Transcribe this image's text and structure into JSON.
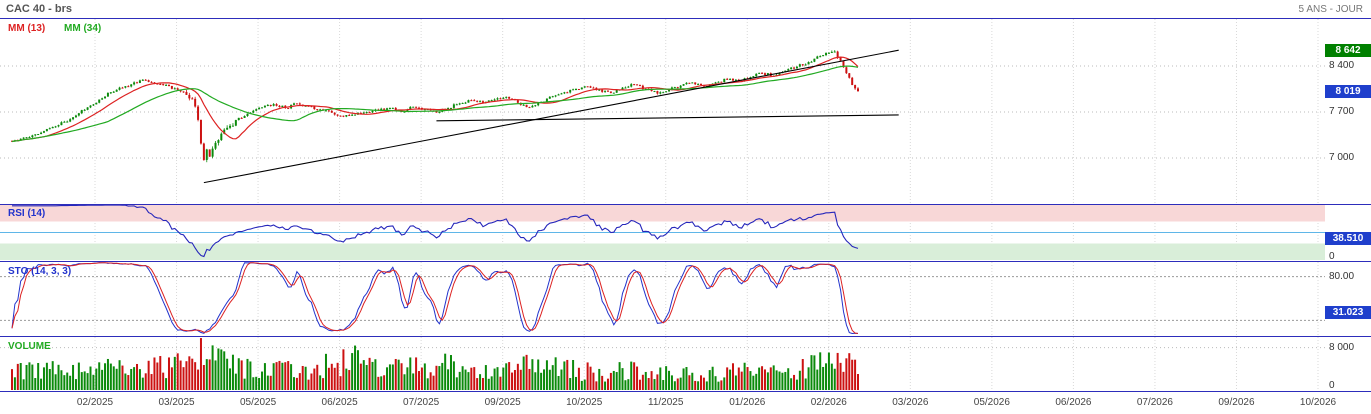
{
  "header": {
    "title": "CAC 40 - brs",
    "timeframe": "5 ANS - JOUR"
  },
  "chart_data": {
    "type": "candlestick",
    "title": "CAC 40 - brs",
    "timeframe": "5 ANS - JOUR",
    "x_labels": [
      "02/2025",
      "03/2025",
      "05/2025",
      "06/2025",
      "07/2025",
      "09/2025",
      "10/2025",
      "11/2025",
      "01/2026",
      "02/2026",
      "03/2026",
      "05/2026",
      "06/2026",
      "07/2026",
      "09/2026",
      "10/2026"
    ],
    "panels": {
      "price": {
        "ylim": [
          6315,
          9115
        ],
        "legend": [
          {
            "label": "MM (13)",
            "period": 13,
            "color": "#dd2222"
          },
          {
            "label": "MM (34)",
            "period": 34,
            "color": "#22aa22"
          }
        ],
        "candle_colors": {
          "up": "#0b8a0b",
          "down": "#cc1111"
        },
        "y_ticks": [
          {
            "label": "8 400",
            "value": 8400
          },
          {
            "label": "7 700",
            "value": 7700
          },
          {
            "label": "7 000",
            "value": 7000
          }
        ],
        "badges": [
          {
            "label": "8 642",
            "value": 8642,
            "color": "#008000"
          },
          {
            "label": "8 019",
            "value": 8019,
            "color": "#1f3fcc"
          }
        ],
        "days_total": 291,
        "close_keypoints": [
          [
            0,
            7250
          ],
          [
            4,
            7310
          ],
          [
            8,
            7360
          ],
          [
            12,
            7440
          ],
          [
            16,
            7500
          ],
          [
            21,
            7620
          ],
          [
            26,
            7770
          ],
          [
            30,
            7890
          ],
          [
            34,
            8000
          ],
          [
            38,
            8070
          ],
          [
            41,
            8120
          ],
          [
            45,
            8190
          ],
          [
            48,
            8150
          ],
          [
            52,
            8110
          ],
          [
            56,
            8060
          ],
          [
            60,
            7960
          ],
          [
            62,
            7900
          ],
          [
            64,
            7580
          ],
          [
            65,
            7220
          ],
          [
            66,
            6970
          ],
          [
            67,
            7130
          ],
          [
            68,
            7020
          ],
          [
            70,
            7230
          ],
          [
            72,
            7370
          ],
          [
            75,
            7490
          ],
          [
            78,
            7610
          ],
          [
            82,
            7690
          ],
          [
            86,
            7770
          ],
          [
            90,
            7820
          ],
          [
            94,
            7760
          ],
          [
            98,
            7830
          ],
          [
            102,
            7790
          ],
          [
            106,
            7740
          ],
          [
            110,
            7690
          ],
          [
            114,
            7630
          ],
          [
            118,
            7660
          ],
          [
            122,
            7700
          ],
          [
            126,
            7730
          ],
          [
            130,
            7760
          ],
          [
            134,
            7700
          ],
          [
            138,
            7780
          ],
          [
            142,
            7740
          ],
          [
            146,
            7690
          ],
          [
            150,
            7760
          ],
          [
            154,
            7830
          ],
          [
            158,
            7880
          ],
          [
            162,
            7840
          ],
          [
            166,
            7890
          ],
          [
            170,
            7930
          ],
          [
            174,
            7840
          ],
          [
            178,
            7770
          ],
          [
            182,
            7850
          ],
          [
            186,
            7940
          ],
          [
            190,
            8000
          ],
          [
            194,
            8050
          ],
          [
            198,
            8090
          ],
          [
            202,
            8040
          ],
          [
            206,
            7990
          ],
          [
            210,
            8070
          ],
          [
            214,
            8120
          ],
          [
            218,
            8050
          ],
          [
            222,
            7980
          ],
          [
            226,
            8040
          ],
          [
            230,
            8100
          ],
          [
            234,
            8150
          ],
          [
            238,
            8090
          ],
          [
            242,
            8150
          ],
          [
            246,
            8200
          ],
          [
            250,
            8170
          ],
          [
            254,
            8230
          ],
          [
            258,
            8290
          ],
          [
            262,
            8250
          ],
          [
            266,
            8330
          ],
          [
            270,
            8390
          ],
          [
            274,
            8460
          ],
          [
            278,
            8550
          ],
          [
            281,
            8600
          ],
          [
            283,
            8620
          ],
          [
            285,
            8480
          ],
          [
            287,
            8290
          ],
          [
            289,
            8110
          ],
          [
            291,
            8019
          ]
        ],
        "trendlines": [
          {
            "from": [
              66,
              6625
            ],
            "to": [
              305,
              8640
            ],
            "color": "#000000"
          },
          {
            "from": [
              146,
              7565
            ],
            "to": [
              305,
              7655
            ],
            "color": "#000000"
          }
        ]
      },
      "rsi": {
        "label": "RSI (14)",
        "period": 14,
        "value": 38.51,
        "value_badge": "38.510",
        "badge_color": "#1f3fcc",
        "line_color": "#2626bb",
        "ylim": [
          0,
          100
        ],
        "midline": 50,
        "y_tick_bottom": "0",
        "zones": [
          {
            "from": 70,
            "to": 100,
            "color": "#f8d7d7"
          },
          {
            "from": 0,
            "to": 30,
            "color": "#d9eed9"
          }
        ]
      },
      "sto": {
        "label": "STO (14, 3, 3)",
        "value": 31.023,
        "value_badge": "31.023",
        "badge_color": "#1f3fcc",
        "k_color": "#2233cc",
        "d_color": "#dd2222",
        "ylim": [
          0,
          100
        ],
        "levels": [
          80,
          20
        ],
        "level_label": "80.00"
      },
      "volume": {
        "label": "VOLUME",
        "ylim": [
          0,
          10000
        ],
        "y_ticks": [
          {
            "label": "8 000",
            "value": 8000
          },
          {
            "label": "0",
            "value": 0
          }
        ],
        "envelope_keypoints": [
          [
            0,
            3400
          ],
          [
            30,
            4200
          ],
          [
            55,
            4500
          ],
          [
            62,
            7800
          ],
          [
            66,
            8600
          ],
          [
            70,
            6500
          ],
          [
            80,
            4200
          ],
          [
            100,
            3600
          ],
          [
            116,
            6200
          ],
          [
            128,
            3800
          ],
          [
            150,
            4800
          ],
          [
            163,
            3500
          ],
          [
            176,
            4600
          ],
          [
            190,
            4000
          ],
          [
            205,
            3400
          ],
          [
            220,
            3800
          ],
          [
            235,
            3000
          ],
          [
            250,
            3600
          ],
          [
            262,
            3200
          ],
          [
            272,
            4200
          ],
          [
            280,
            5200
          ],
          [
            285,
            6800
          ],
          [
            291,
            5200
          ]
        ]
      }
    }
  }
}
